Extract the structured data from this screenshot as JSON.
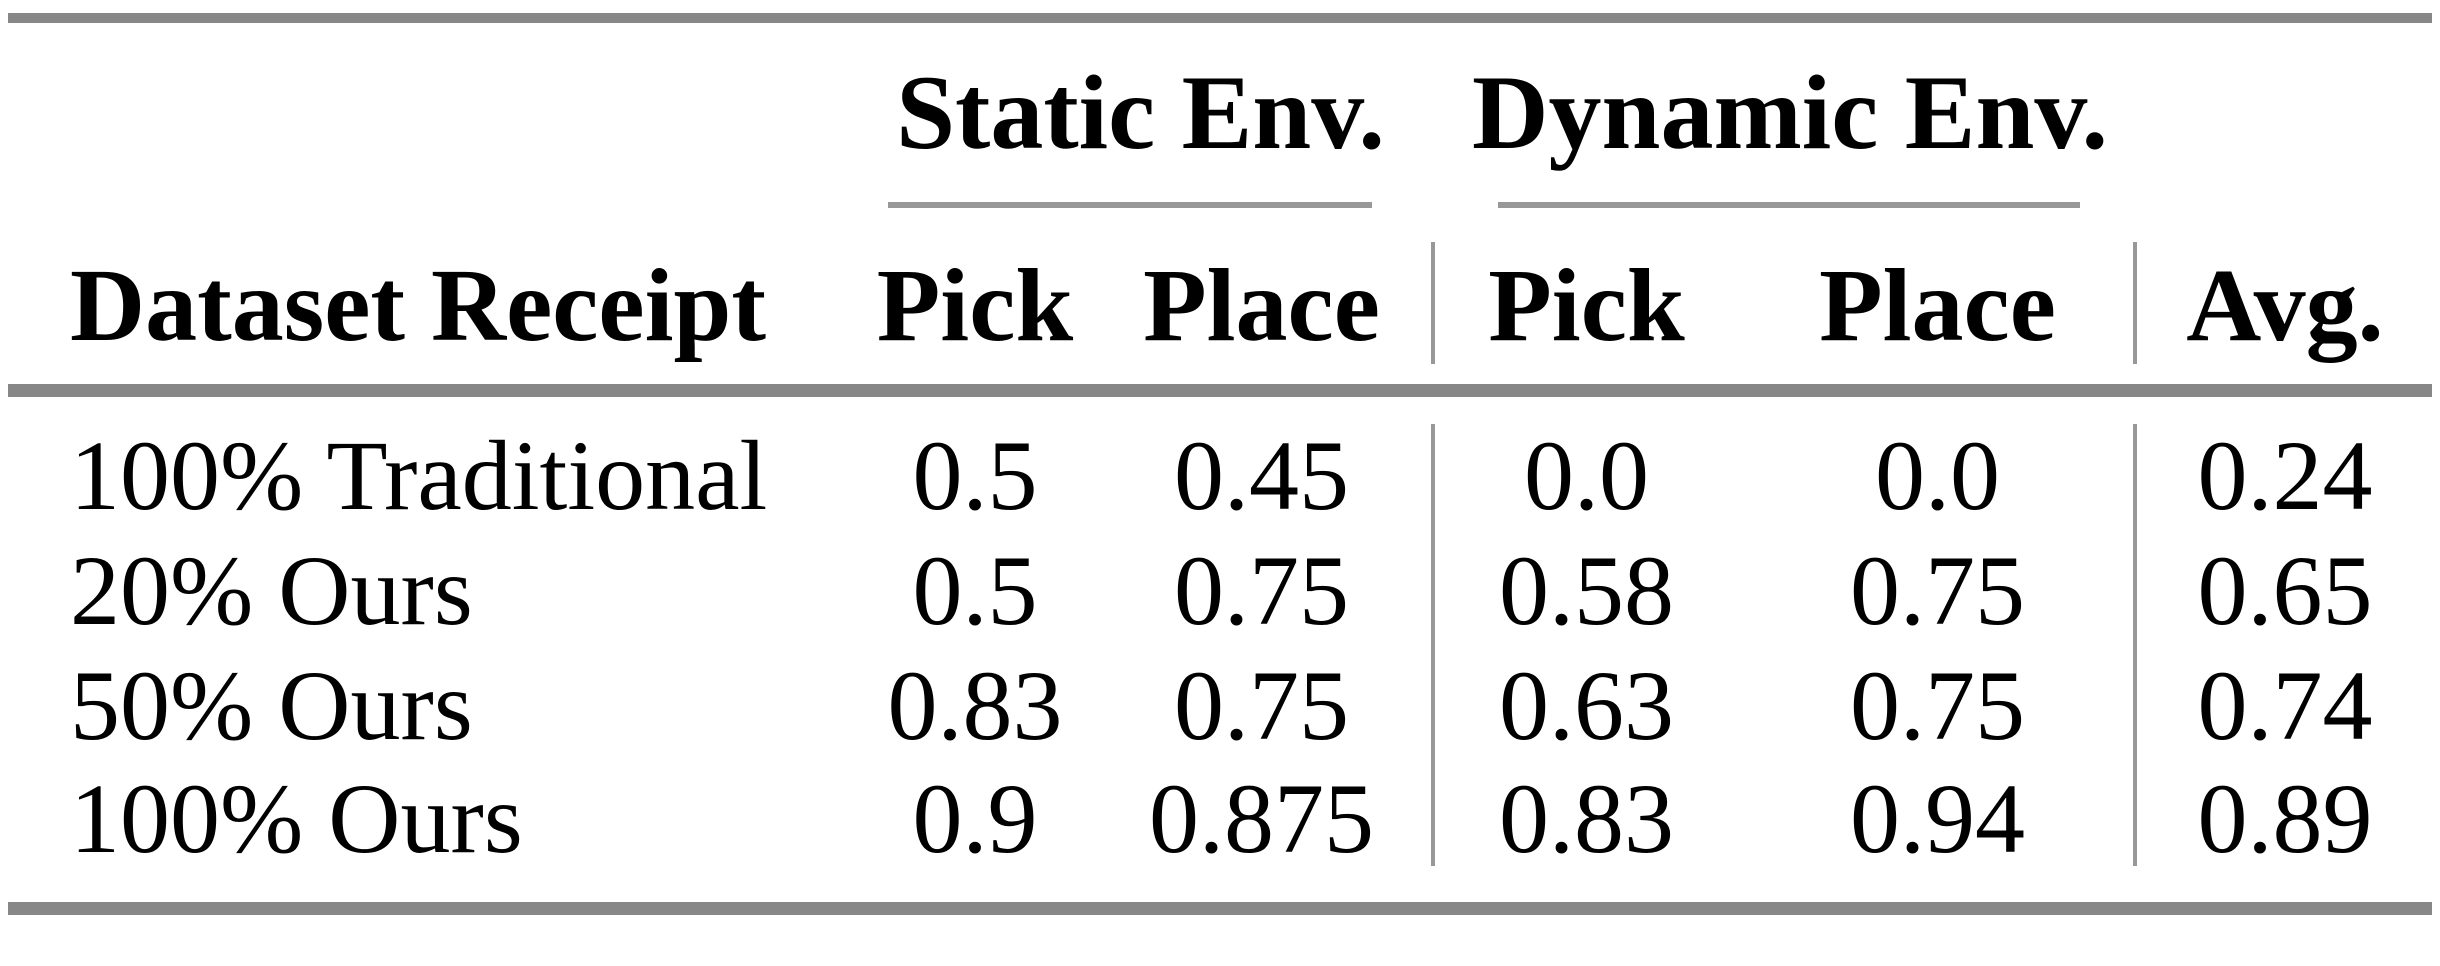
{
  "table": {
    "group_headers": {
      "static": "Static Env.",
      "dynamic": "Dynamic Env."
    },
    "headers": {
      "dataset": "Dataset Receipt",
      "static_pick": "Pick",
      "static_place": "Place",
      "dynamic_pick": "Pick",
      "dynamic_place": "Place",
      "avg": "Avg."
    },
    "rows": [
      {
        "label": "100% Traditional",
        "static_pick": "0.5",
        "static_place": "0.45",
        "dynamic_pick": "0.0",
        "dynamic_place": "0.0",
        "avg": "0.24"
      },
      {
        "label": "20% Ours",
        "static_pick": "0.5",
        "static_place": "0.75",
        "dynamic_pick": "0.58",
        "dynamic_place": "0.75",
        "avg": "0.65"
      },
      {
        "label": "50% Ours",
        "static_pick": "0.83",
        "static_place": "0.75",
        "dynamic_pick": "0.63",
        "dynamic_place": "0.75",
        "avg": "0.74"
      },
      {
        "label": "100% Ours",
        "static_pick": "0.9",
        "static_place": "0.875",
        "dynamic_pick": "0.83",
        "dynamic_place": "0.94",
        "avg": "0.89"
      }
    ]
  },
  "chart_data": {
    "type": "table",
    "title": "",
    "column_groups": [
      "Static Env.",
      "Dynamic Env."
    ],
    "columns": [
      "Dataset Receipt",
      "Static Env. Pick",
      "Static Env. Place",
      "Dynamic Env. Pick",
      "Dynamic Env. Place",
      "Avg."
    ],
    "rows": [
      [
        "100% Traditional",
        0.5,
        0.45,
        0.0,
        0.0,
        0.24
      ],
      [
        "20% Ours",
        0.5,
        0.75,
        0.58,
        0.75,
        0.65
      ],
      [
        "50% Ours",
        0.83,
        0.75,
        0.63,
        0.75,
        0.74
      ],
      [
        "100% Ours",
        0.9,
        0.875,
        0.83,
        0.94,
        0.89
      ]
    ]
  },
  "colors": {
    "background": "#ffffff",
    "text": "#000000",
    "rule_thick": "#878787",
    "rule_thin": "#989898"
  }
}
